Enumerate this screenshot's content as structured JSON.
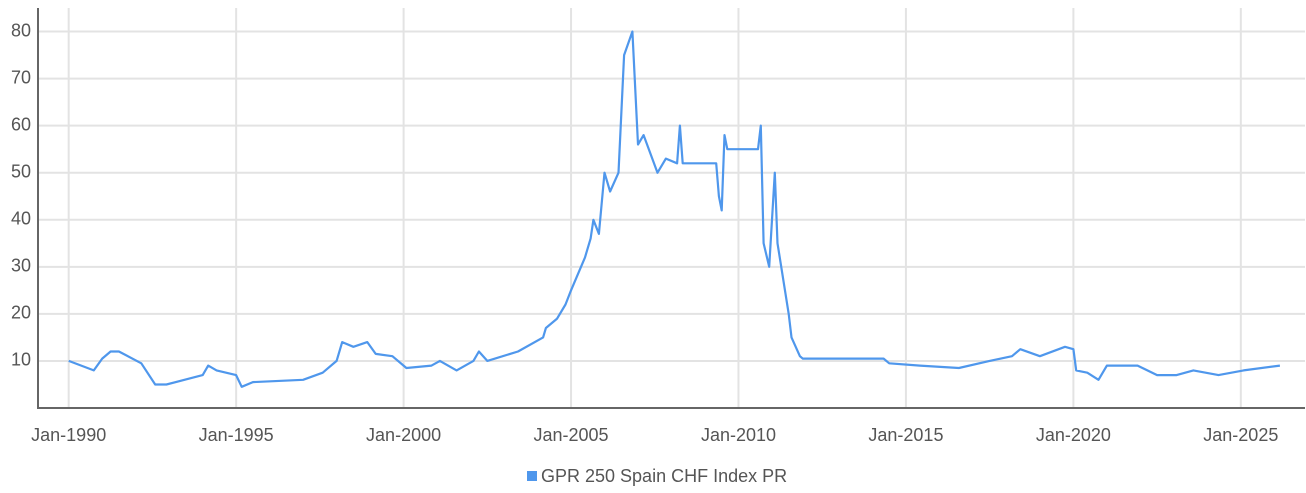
{
  "chart_data": {
    "type": "line",
    "x": [
      "Jan-1990",
      "Oct-1990",
      "Jan-1991",
      "Apr-1991",
      "Jul-1991",
      "Mar-1992",
      "Aug-1992",
      "Dec-1992",
      "Jan-1994",
      "Mar-1994",
      "Jun-1994",
      "Jan-1995",
      "Mar-1995",
      "Jul-1995",
      "Jan-1997",
      "Aug-1997",
      "Jan-1998",
      "Mar-1998",
      "Jul-1998",
      "Dec-1998",
      "Mar-1999",
      "Sep-1999",
      "Feb-2000",
      "Nov-2000",
      "Feb-2001",
      "Aug-2001",
      "Feb-2002",
      "Apr-2002",
      "Jul-2002",
      "Jun-2003",
      "Mar-2004",
      "Apr-2004",
      "Aug-2004",
      "Nov-2004",
      "Jan-2005",
      "Jun-2005",
      "Aug-2005",
      "Sep-2005",
      "Nov-2005",
      "Jan-2006",
      "Mar-2006",
      "Jun-2006",
      "Aug-2006",
      "Nov-2006",
      "Jan-2007",
      "Mar-2007",
      "Aug-2007",
      "Nov-2007",
      "Mar-2008",
      "Apr-2008",
      "May-2008",
      "May-2009",
      "Jun-2009",
      "Jul-2009",
      "Aug-2009",
      "Sep-2009",
      "Aug-2010",
      "Sep-2010",
      "Oct-2010",
      "Dec-2010",
      "Feb-2011",
      "Mar-2011",
      "Jul-2011",
      "Aug-2011",
      "Nov-2011",
      "Dec-2011",
      "May-2014",
      "Jul-2014",
      "Jun-2015",
      "Aug-2016",
      "Jul-2017",
      "Mar-2018",
      "Jun-2018",
      "Jan-2019",
      "Oct-2019",
      "Jan-2020",
      "Feb-2020",
      "Jun-2020",
      "Oct-2020",
      "Jan-2021",
      "Dec-2021",
      "Jul-2022",
      "Feb-2023",
      "Aug-2023",
      "May-2024",
      "Feb-2025",
      "Mar-2026"
    ],
    "series": [
      {
        "name": "GPR 250 Spain CHF Index PR",
        "color": "#4f97ec",
        "values": [
          10,
          8,
          10.5,
          12,
          12,
          9.5,
          5,
          5,
          7,
          9,
          8,
          7,
          4.5,
          5.5,
          6,
          7.5,
          10,
          14,
          13,
          14,
          11.5,
          11,
          8.5,
          9,
          10,
          8,
          10,
          12,
          10,
          12,
          15,
          17,
          19,
          22,
          25,
          32,
          36,
          40,
          37,
          50,
          46,
          50,
          75,
          80,
          56,
          58,
          50,
          53,
          52,
          60,
          52,
          52,
          45,
          42,
          58,
          55,
          55,
          60,
          35,
          30,
          50,
          35,
          20,
          15,
          11,
          10.5,
          10.5,
          9.5,
          9,
          8.5,
          10,
          11,
          12.5,
          11,
          13,
          12.5,
          8,
          7.5,
          6,
          9,
          9,
          7,
          7,
          8,
          7,
          8,
          9
        ]
      }
    ],
    "xlim": [
      "Feb-1989",
      "Dec-2026"
    ],
    "xticks": [
      "Jan-1990",
      "Jan-1995",
      "Jan-2000",
      "Jan-2005",
      "Jan-2010",
      "Jan-2015",
      "Jan-2020",
      "Jan-2025"
    ],
    "ylim": [
      0,
      85
    ],
    "yticks": [
      10,
      20,
      30,
      40,
      50,
      60,
      70,
      80
    ],
    "grid": true,
    "legend": "bottom"
  }
}
